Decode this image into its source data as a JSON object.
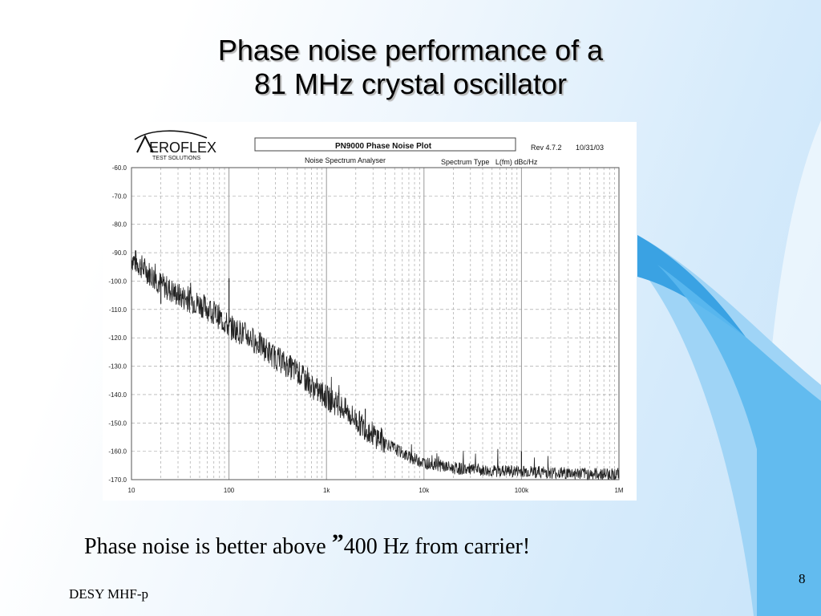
{
  "slide": {
    "title_line1": "Phase noise performance of a",
    "title_line2": "81 MHz crystal oscillator",
    "caption_before": "Phase noise is better above ",
    "caption_quote": "”",
    "caption_after": "400 Hz from carrier!",
    "footer": "DESY MHF-p",
    "page_number": "8"
  },
  "instrument": {
    "logo_text": "EROFLEX",
    "logo_sub": "TEST SOLUTIONS",
    "plot_title": "PN9000 Phase Noise Plot",
    "revision": "Rev 4.7.2",
    "date": "10/31/03",
    "analyser": "Noise Spectrum Analyser",
    "spectrum_type": "Spectrum Type   L(fm) dBc/Hz"
  },
  "colors": {
    "accent_blue": "#3aa2e3",
    "accent_light": "#9fd4f6",
    "grid": "#9a9a9a",
    "trace": "#222222"
  },
  "chart_data": {
    "type": "line",
    "x_scale": "log",
    "xlim": [
      10,
      1000000
    ],
    "ylim": [
      -170,
      -60
    ],
    "x_ticks": [
      10,
      100,
      1000,
      10000,
      100000,
      1000000
    ],
    "x_tick_labels": [
      "10",
      "100",
      "1k",
      "10k",
      "100k",
      "1M"
    ],
    "y_ticks": [
      -60,
      -70,
      -80,
      -90,
      -100,
      -110,
      -120,
      -130,
      -140,
      -150,
      -160,
      -170
    ],
    "y_tick_labels": [
      "-60.0",
      "-70.0",
      "-80.0",
      "-90.0",
      "-100.0",
      "-110.0",
      "-120.0",
      "-130.0",
      "-140.0",
      "-150.0",
      "-160.0",
      "-170.0"
    ],
    "grid": true,
    "series": [
      {
        "x": [
          10,
          15,
          20,
          30,
          50,
          70,
          100,
          150,
          200,
          300,
          500,
          700,
          1000,
          1500,
          2000,
          3000,
          5000,
          7000,
          10000,
          20000,
          50000,
          100000,
          200000,
          500000,
          1000000
        ],
        "values": [
          -92,
          -97,
          -101,
          -105,
          -108,
          -111,
          -116,
          -119,
          -122,
          -127,
          -132,
          -137,
          -141,
          -145,
          -149,
          -154,
          -159,
          -162,
          -164,
          -166,
          -167,
          -167,
          -167.5,
          -168,
          -168
        ]
      }
    ],
    "spurs": [
      {
        "x": 100,
        "y": -99
      },
      {
        "x": 20,
        "y": -108
      },
      {
        "x": 100000,
        "y": -160
      },
      {
        "x": 2500,
        "y": -145
      }
    ]
  }
}
